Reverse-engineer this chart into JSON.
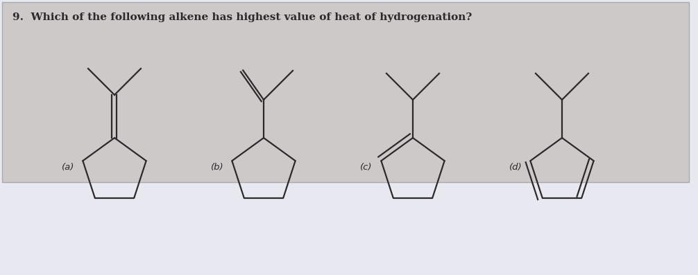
{
  "title": "9.  Which of the following alkene has highest value of heat of hydrogenation?",
  "box_color": "#cdc9c9",
  "background_color": "#e8e8f0",
  "line_color": "#2a2a2a",
  "label_color": "#2a2a2a",
  "line_width": 1.6,
  "labels": [
    "(a)",
    "(b)",
    "(c)",
    "(d)"
  ],
  "label_fontsize": 9.5,
  "title_fontsize": 11,
  "fig_width": 10.06,
  "fig_height": 3.97
}
